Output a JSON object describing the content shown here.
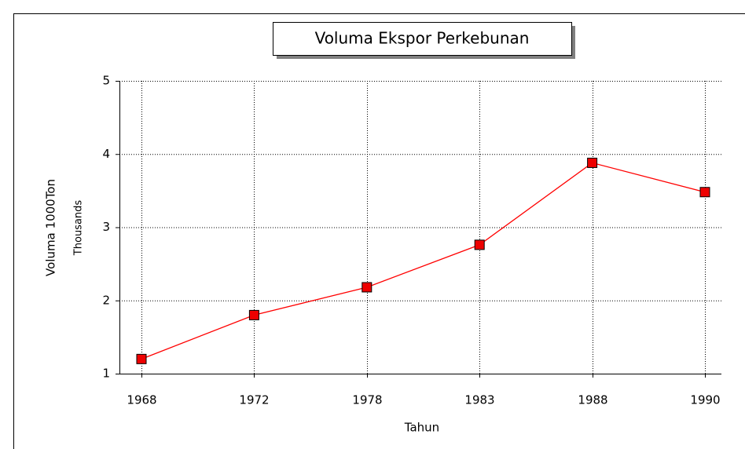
{
  "chart_data": {
    "type": "line",
    "title": "Voluma Ekspor Perkebunan",
    "x_label": "Tahun",
    "y_label": "Voluma 1000Ton",
    "y_unit_label": "Thousands",
    "categories": [
      "1968",
      "1972",
      "1978",
      "1983",
      "1988",
      "1990"
    ],
    "series": [
      {
        "name": "Voluma",
        "color": "#ff0000",
        "marker_color": "#ee0000",
        "values": [
          1.2,
          1.8,
          2.18,
          2.76,
          3.88,
          3.48
        ]
      }
    ],
    "ylim": [
      1,
      5
    ],
    "yticks": [
      1,
      2,
      3,
      4,
      5
    ],
    "grid": true
  }
}
